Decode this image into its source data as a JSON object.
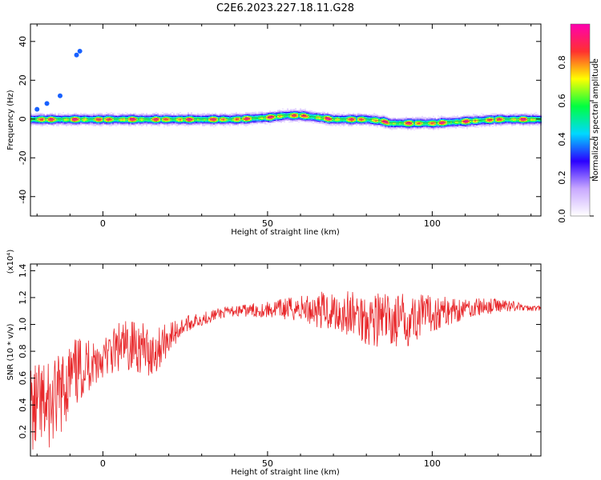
{
  "figure": {
    "title": "C2E6.2023.227.18.11.G28"
  },
  "chart_data": [
    {
      "type": "heatmap",
      "title": "C2E6.2023.227.18.11.G28",
      "xlabel": "Height of straight line (km)",
      "ylabel": "Frequency (Hz)",
      "xlim": [
        -22,
        133
      ],
      "ylim": [
        -50,
        49
      ],
      "xticks": [
        0,
        50,
        100
      ],
      "yticks": [
        -40,
        -20,
        0,
        20,
        40
      ],
      "colorbar": {
        "label": "Normalized spectral amplitude",
        "range": [
          0,
          1
        ],
        "ticks": [
          0.0,
          0.2,
          0.4,
          0.6,
          0.8
        ],
        "colormap": [
          "#ffffff",
          "#c8a8ff",
          "#2b00ff",
          "#00d8ff",
          "#00ff40",
          "#ffff00",
          "#ff3030",
          "#ff00b0"
        ]
      },
      "ridge": {
        "x": [
          -22,
          -10,
          0,
          10,
          20,
          30,
          40,
          50,
          55,
          60,
          65,
          70,
          75,
          80,
          85,
          87,
          90,
          95,
          100,
          110,
          120,
          133
        ],
        "frequency": [
          0,
          0,
          0,
          0,
          0,
          0,
          0,
          1,
          2,
          2,
          1,
          0,
          0,
          0,
          -1,
          -2,
          -2,
          -2,
          -2,
          -1,
          0,
          0
        ]
      },
      "outlier_points": [
        {
          "x": -8,
          "frequency": 33
        },
        {
          "x": -7,
          "frequency": 35
        },
        {
          "x": -13,
          "frequency": 12
        },
        {
          "x": -17,
          "frequency": 8
        },
        {
          "x": -20,
          "frequency": 5
        }
      ]
    },
    {
      "type": "line",
      "xlabel": "Height of straight line (km)",
      "ylabel": "SNR (10 * v/v)",
      "y_multiplier": "(x10⁴)",
      "xlim": [
        -22,
        133
      ],
      "ylim": [
        0.02,
        1.45
      ],
      "xticks": [
        0,
        50,
        100
      ],
      "yticks": [
        0.2,
        0.4,
        0.6,
        0.8,
        1.0,
        1.2,
        1.4
      ],
      "series": [
        {
          "color": "#e8272a",
          "x": [
            -22,
            -15,
            -10,
            -5,
            0,
            5,
            10,
            15,
            20,
            25,
            30,
            35,
            40,
            50,
            60,
            70,
            80,
            90,
            100,
            110,
            120,
            125,
            128,
            133
          ],
          "y": [
            0.35,
            0.4,
            0.6,
            0.7,
            0.75,
            0.82,
            0.85,
            0.78,
            0.9,
            1.0,
            1.04,
            1.08,
            1.1,
            1.11,
            1.12,
            1.1,
            1.05,
            1.02,
            1.08,
            1.12,
            1.14,
            1.14,
            1.12,
            1.12
          ],
          "amplitude": [
            0.35,
            0.32,
            0.28,
            0.22,
            0.15,
            0.2,
            0.2,
            0.18,
            0.12,
            0.06,
            0.05,
            0.04,
            0.04,
            0.06,
            0.1,
            0.16,
            0.2,
            0.22,
            0.14,
            0.08,
            0.05,
            0.04,
            0.02,
            0.02
          ]
        }
      ]
    }
  ]
}
